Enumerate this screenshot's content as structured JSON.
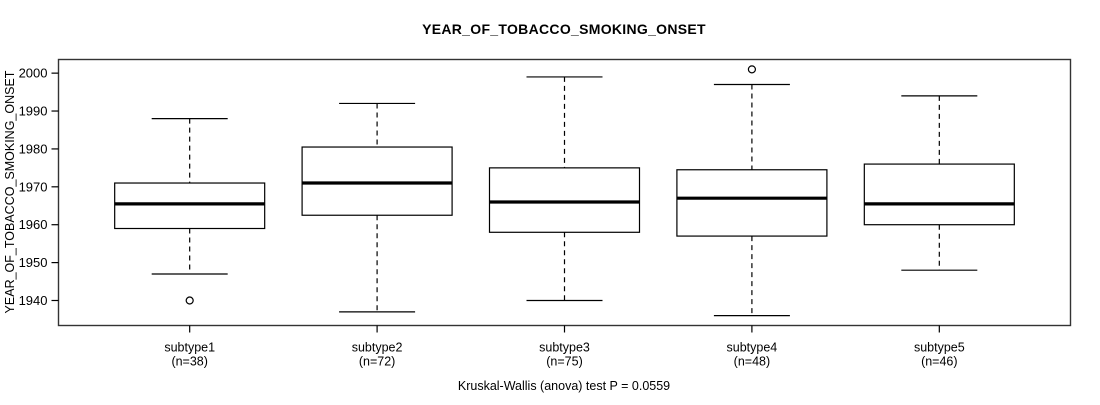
{
  "figure": {
    "title": "YEAR_OF_TOBACCO_SMOKING_ONSET",
    "y_axis_title": "YEAR_OF_TOBACCO_SMOKING_ONSET",
    "caption": "Kruskal-Wallis (anova) test P = 0.0559"
  },
  "chart_data": {
    "type": "boxplot",
    "title": "YEAR_OF_TOBACCO_SMOKING_ONSET",
    "ylabel": "YEAR_OF_TOBACCO_SMOKING_ONSET",
    "xlabel": "",
    "caption": "Kruskal-Wallis (anova) test P = 0.0559",
    "grid": false,
    "background": "#ffffff",
    "line_color": "#000000",
    "box_fill": "#ffffff",
    "ylim": [
      1933.4,
      2003.6
    ],
    "yticks": [
      1940,
      1950,
      1960,
      1970,
      1980,
      1990,
      2000
    ],
    "categories": [
      "subtype1",
      "subtype2",
      "subtype3",
      "subtype4",
      "subtype5"
    ],
    "sample_size_labels": [
      "(n=38)",
      "(n=72)",
      "(n=75)",
      "(n=48)",
      "(n=46)"
    ],
    "series": [
      {
        "category": "subtype1",
        "n_label": "(n=38)",
        "whisker_low": 1947,
        "q1": 1959,
        "median": 1965.5,
        "q3": 1971,
        "whisker_high": 1988,
        "outliers": [
          1940
        ]
      },
      {
        "category": "subtype2",
        "n_label": "(n=72)",
        "whisker_low": 1937,
        "q1": 1962.5,
        "median": 1971,
        "q3": 1980.5,
        "whisker_high": 1992,
        "outliers": []
      },
      {
        "category": "subtype3",
        "n_label": "(n=75)",
        "whisker_low": 1940,
        "q1": 1958,
        "median": 1966,
        "q3": 1975,
        "whisker_high": 1999,
        "outliers": []
      },
      {
        "category": "subtype4",
        "n_label": "(n=48)",
        "whisker_low": 1936,
        "q1": 1957,
        "median": 1967,
        "q3": 1974.5,
        "whisker_high": 1997,
        "outliers": [
          2001
        ]
      },
      {
        "category": "subtype5",
        "n_label": "(n=46)",
        "whisker_low": 1948,
        "q1": 1960,
        "median": 1965.5,
        "q3": 1976,
        "whisker_high": 1994,
        "outliers": []
      }
    ]
  }
}
